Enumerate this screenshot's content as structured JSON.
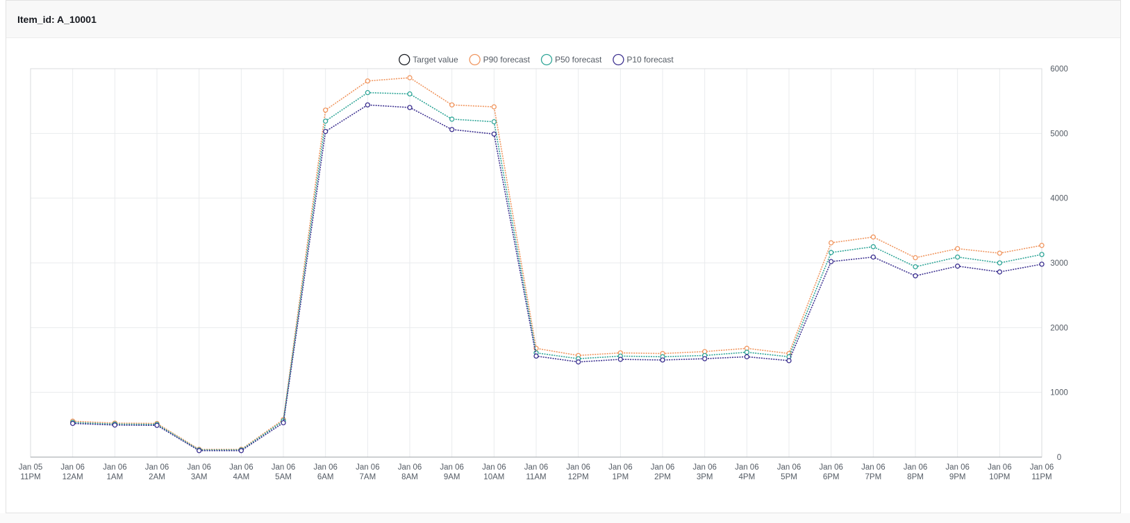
{
  "panel": {
    "title": "Item_id: A_10001"
  },
  "chart_data": {
    "type": "line",
    "title": "",
    "xlabel": "",
    "ylabel": "",
    "ylim": [
      0,
      6000
    ],
    "yticks": [
      0,
      1000,
      2000,
      3000,
      4000,
      5000,
      6000
    ],
    "y_axis_side": "right",
    "grid": true,
    "legend_position": "top-center",
    "x_tick_labels": [
      [
        "Jan 05",
        "11PM"
      ],
      [
        "Jan 06",
        "12AM"
      ],
      [
        "Jan 06",
        "1AM"
      ],
      [
        "Jan 06",
        "2AM"
      ],
      [
        "Jan 06",
        "3AM"
      ],
      [
        "Jan 06",
        "4AM"
      ],
      [
        "Jan 06",
        "5AM"
      ],
      [
        "Jan 06",
        "6AM"
      ],
      [
        "Jan 06",
        "7AM"
      ],
      [
        "Jan 06",
        "8AM"
      ],
      [
        "Jan 06",
        "9AM"
      ],
      [
        "Jan 06",
        "10AM"
      ],
      [
        "Jan 06",
        "11AM"
      ],
      [
        "Jan 06",
        "12PM"
      ],
      [
        "Jan 06",
        "1PM"
      ],
      [
        "Jan 06",
        "2PM"
      ],
      [
        "Jan 06",
        "3PM"
      ],
      [
        "Jan 06",
        "4PM"
      ],
      [
        "Jan 06",
        "5PM"
      ],
      [
        "Jan 06",
        "6PM"
      ],
      [
        "Jan 06",
        "7PM"
      ],
      [
        "Jan 06",
        "8PM"
      ],
      [
        "Jan 06",
        "9PM"
      ],
      [
        "Jan 06",
        "10PM"
      ],
      [
        "Jan 06",
        "11PM"
      ]
    ],
    "series": [
      {
        "name": "Target value",
        "color": "#16191f",
        "values": []
      },
      {
        "name": "P90 forecast",
        "color": "#f0955e",
        "values": [
          null,
          555,
          525,
          520,
          120,
          120,
          580,
          5360,
          5810,
          5860,
          5440,
          5410,
          1680,
          1570,
          1610,
          1600,
          1630,
          1680,
          1600,
          3310,
          3400,
          3080,
          3220,
          3150,
          3270
        ]
      },
      {
        "name": "P50 forecast",
        "color": "#2ea597",
        "values": [
          null,
          535,
          510,
          505,
          110,
          110,
          560,
          5190,
          5630,
          5610,
          5220,
          5180,
          1610,
          1520,
          1560,
          1550,
          1570,
          1620,
          1550,
          3160,
          3250,
          2940,
          3090,
          3000,
          3130
        ]
      },
      {
        "name": "P10 forecast",
        "color": "#3b2f8f",
        "values": [
          null,
          520,
          495,
          490,
          100,
          100,
          530,
          5030,
          5440,
          5400,
          5060,
          4990,
          1560,
          1470,
          1510,
          1500,
          1520,
          1550,
          1490,
          3020,
          3090,
          2800,
          2950,
          2860,
          2980
        ]
      }
    ]
  }
}
